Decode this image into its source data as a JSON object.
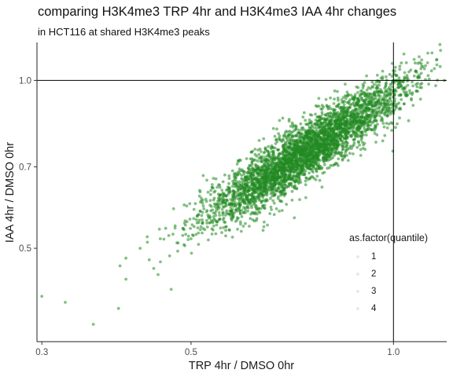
{
  "title": "comparing H3K4me3 TRP 4hr and H3K4me3 IAA 4hr changes",
  "subtitle": "in HCT116 at shared H3K4me3 peaks",
  "chart_data": {
    "type": "scatter",
    "xlabel": "TRP 4hr / DMSO 0hr",
    "ylabel": "IAA 4hr / DMSO 0hr",
    "x_scale": "log",
    "y_scale": "log",
    "xlim": [
      0.295,
      1.2
    ],
    "ylim": [
      0.34,
      1.17
    ],
    "x_ticks": [
      0.3,
      0.5,
      1.0
    ],
    "x_tick_labels": [
      "0.3",
      "0.5",
      "1.0"
    ],
    "y_ticks": [
      0.5,
      0.7,
      1.0
    ],
    "y_tick_labels": [
      "0.5",
      "0.7",
      "1.0"
    ],
    "reference_lines": {
      "vline_x": 1.0,
      "hline_y": 1.0
    },
    "point_color": "#228b22",
    "point_alpha": 0.55,
    "grid": false,
    "series": [
      {
        "x": [
          0.3,
          0.325,
          0.39,
          0.392,
          0.4,
          0.4,
          0.42,
          0.44,
          0.45,
          0.47,
          0.49,
          0.5,
          0.52,
          0.53,
          0.55,
          0.57,
          0.58,
          0.6,
          0.62,
          0.64,
          0.66,
          0.68,
          0.7,
          0.72,
          0.75,
          0.78,
          0.8,
          0.82,
          0.85,
          0.88,
          0.9,
          0.93,
          0.95,
          1.0,
          1.02,
          1.05,
          1.08,
          1.1,
          1.16,
          0.97,
          0.62,
          0.66,
          0.74
        ],
        "y": [
          0.41,
          0.4,
          0.39,
          0.465,
          0.48,
          0.44,
          0.5,
          0.46,
          0.52,
          0.53,
          0.56,
          0.52,
          0.58,
          0.63,
          0.6,
          0.64,
          0.6,
          0.66,
          0.69,
          0.66,
          0.7,
          0.74,
          0.72,
          0.76,
          0.74,
          0.79,
          0.76,
          0.8,
          0.84,
          0.84,
          0.87,
          0.88,
          0.92,
          0.96,
          1.0,
          0.98,
          1.04,
          1.03,
          1.09,
          0.92,
          0.6,
          0.62,
          0.66
        ]
      }
    ],
    "legend": {
      "title": "as.factor(quantile)",
      "entries": [
        "1",
        "2",
        "3",
        "4"
      ],
      "position": "right"
    }
  }
}
